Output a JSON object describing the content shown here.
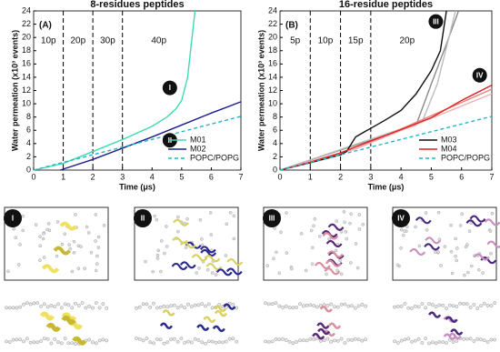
{
  "chart_data": [
    {
      "type": "line",
      "title": "8-residues peptides",
      "panel": "(A)",
      "y_label": "Water permeation (x10³ events)",
      "x_label": "Time (μs)",
      "xlim": [
        0,
        7
      ],
      "xticks": [
        0,
        1,
        2,
        3,
        4,
        5,
        6,
        7
      ],
      "ylim": [
        0,
        24
      ],
      "yticks": [
        0,
        2,
        4,
        6,
        8,
        10,
        12,
        14,
        16,
        18,
        20,
        22,
        24
      ],
      "vlines": [
        1,
        2,
        3
      ],
      "phases": [
        "10p",
        "20p",
        "30p",
        "40p"
      ],
      "legend": "lower right",
      "annotations": [
        "I",
        "II"
      ],
      "series": [
        {
          "name": "M01",
          "color": "#3ddbb0",
          "x": [
            0,
            1,
            2,
            3,
            4,
            4.5,
            4.8,
            5,
            5.2,
            5.3,
            5.45
          ],
          "values": [
            0,
            1,
            2.8,
            4.6,
            6.6,
            8,
            9.2,
            10.5,
            14,
            18,
            24
          ]
        },
        {
          "name": "M02",
          "color": "#1c1c8e",
          "x": [
            0.9,
            2,
            3,
            4,
            5,
            6,
            7
          ],
          "values": [
            0,
            1.6,
            3.3,
            5,
            6.8,
            8.6,
            10.3
          ]
        },
        {
          "name": "POPC/POPG",
          "color": "#25b5c8",
          "dashed": true,
          "x": [
            0,
            7
          ],
          "values": [
            0,
            8.1
          ]
        }
      ]
    },
    {
      "type": "line",
      "title": "16-residue peptides",
      "panel": "(B)",
      "y_label": "Water permeation (x10³ events)",
      "x_label": "Time (μs)",
      "xlim": [
        0,
        7
      ],
      "xticks": [
        0,
        1,
        2,
        3,
        4,
        5,
        6,
        7
      ],
      "ylim": [
        0,
        24
      ],
      "yticks": [
        0,
        2,
        4,
        6,
        8,
        10,
        12,
        14,
        16,
        18,
        20,
        22,
        24
      ],
      "vlines": [
        1,
        2,
        3
      ],
      "phases": [
        "5p",
        "10p",
        "15p",
        "20p"
      ],
      "legend": "lower right",
      "annotations": [
        "III",
        "IV"
      ],
      "replicates": [
        {
          "color": "#8a8a8a",
          "x": [
            0,
            4.5,
            5,
            5.5,
            5.9
          ],
          "values": [
            0,
            6.8,
            13,
            19,
            24
          ]
        },
        {
          "color": "#bcbcbc",
          "x": [
            0,
            4.7,
            5.2,
            5.8
          ],
          "values": [
            0,
            7.3,
            13,
            24
          ]
        },
        {
          "color": "#e98080",
          "x": [
            0,
            2.5,
            7
          ],
          "values": [
            0,
            3.2,
            12.2
          ]
        },
        {
          "color": "#f4b0b0",
          "x": [
            0,
            2.5,
            7
          ],
          "values": [
            0,
            3.2,
            11.5
          ]
        }
      ],
      "series": [
        {
          "name": "M03",
          "color": "#111111",
          "x": [
            0,
            1,
            2,
            2.2,
            2.5,
            2.8,
            3,
            3.5,
            4,
            4.5,
            5,
            5.3,
            5.5
          ],
          "values": [
            0,
            1.1,
            2.3,
            2.8,
            5,
            5.8,
            6.3,
            7.6,
            9,
            11.5,
            15,
            18,
            24
          ]
        },
        {
          "name": "M04",
          "color": "#e02020",
          "x": [
            0,
            1,
            2,
            3,
            4,
            5,
            6,
            7
          ],
          "values": [
            0,
            1.2,
            2.6,
            4.4,
            6.1,
            7.9,
            10.5,
            12.8
          ]
        },
        {
          "name": "POPC/POPG",
          "color": "#25b5c8",
          "dashed": true,
          "x": [
            0,
            7
          ],
          "values": [
            0,
            8.1
          ]
        }
      ]
    }
  ],
  "image_panels": [
    "I",
    "II",
    "III",
    "IV"
  ]
}
